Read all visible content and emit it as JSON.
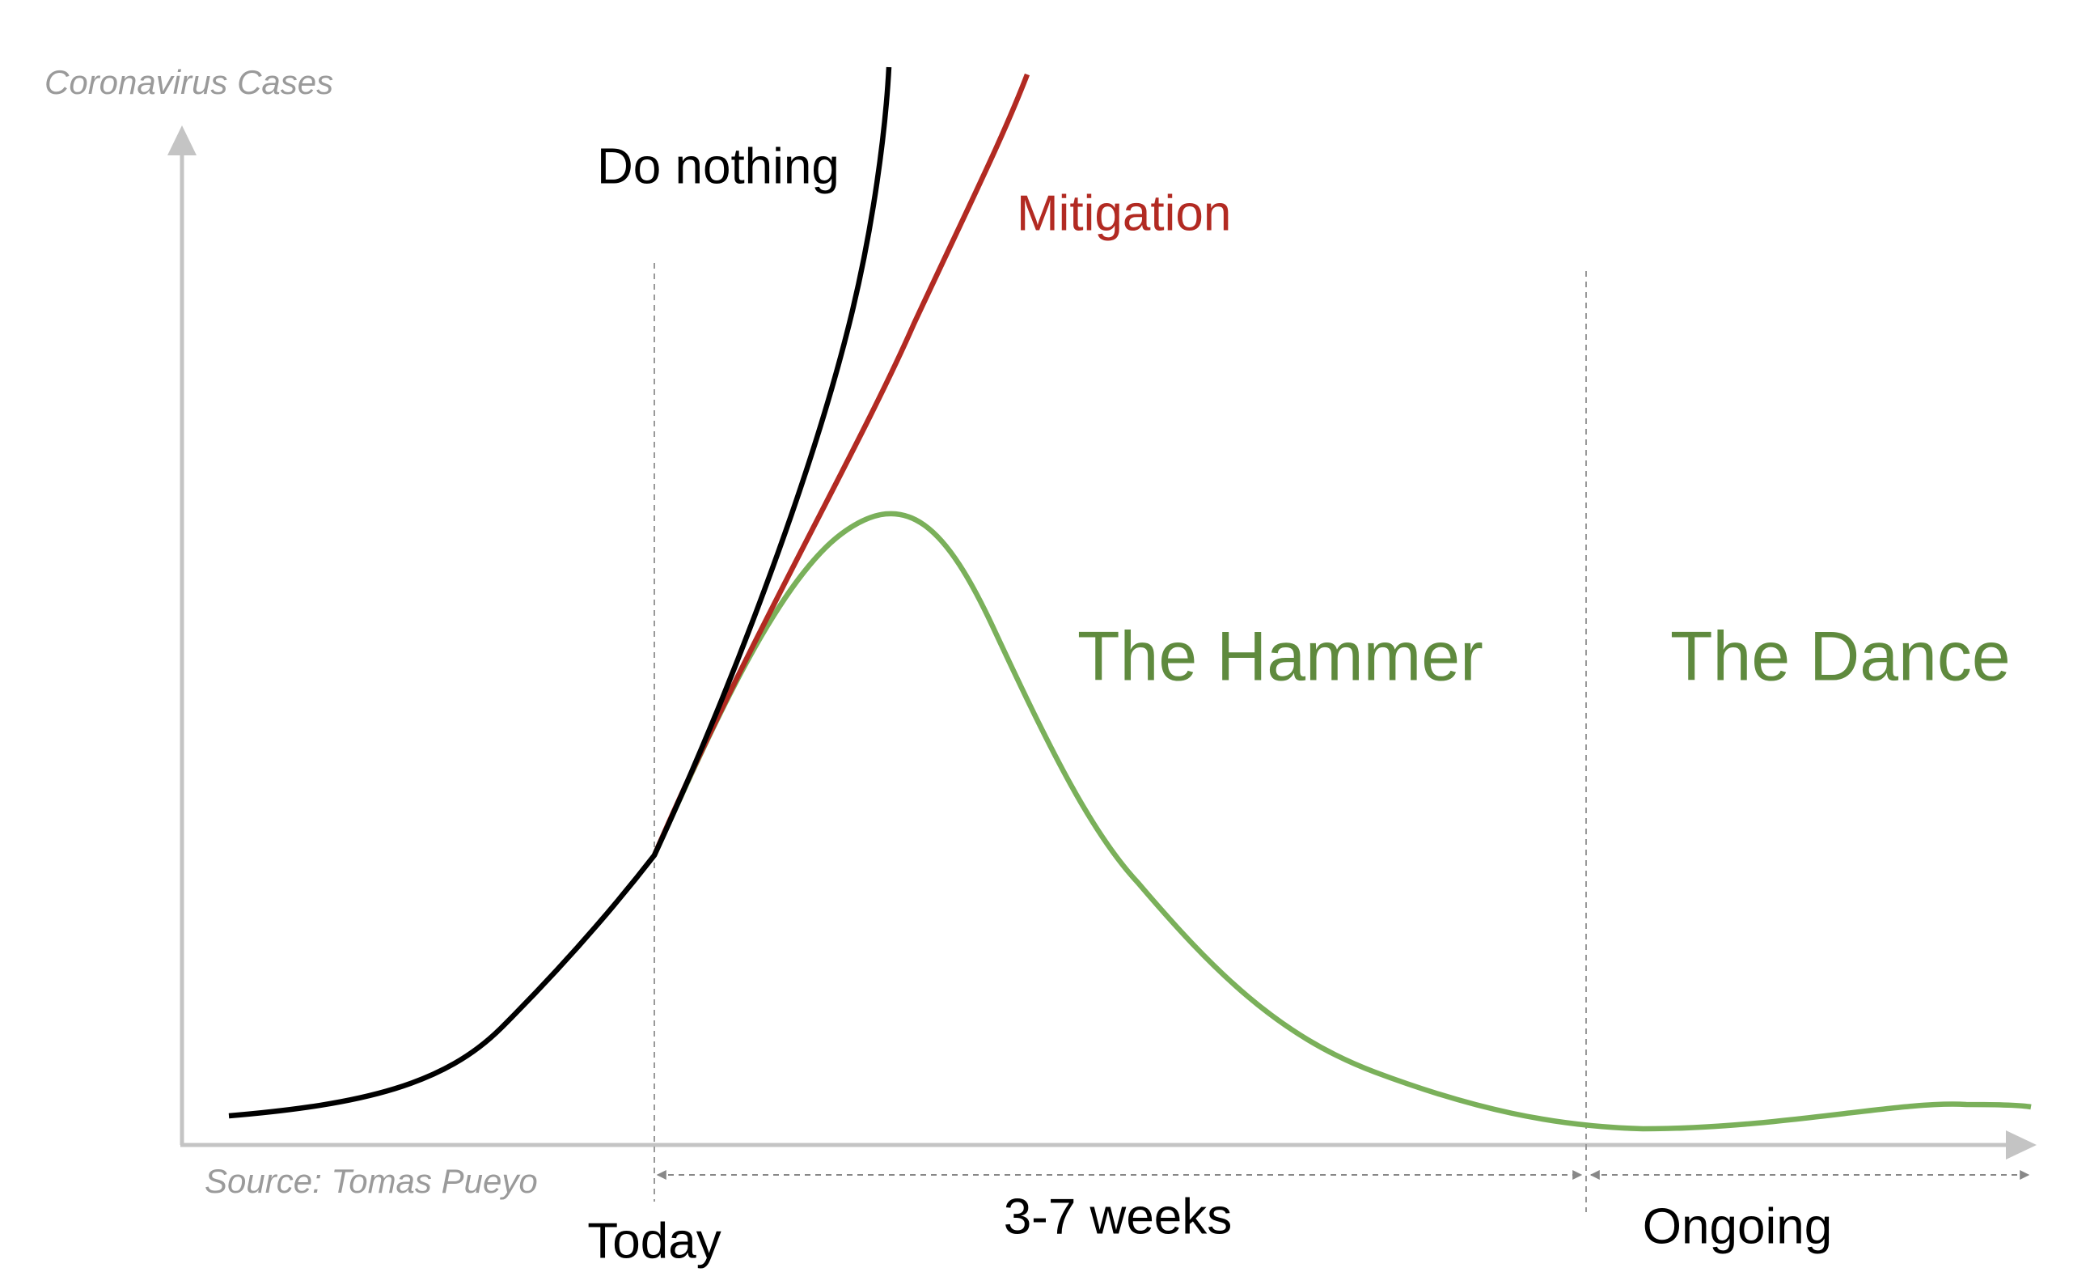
{
  "axis_label": "Coronavirus Cases",
  "source": "Source: Tomas Pueyo",
  "curves": [
    {
      "label": "Do nothing"
    },
    {
      "label": "Mitigation"
    }
  ],
  "phases": [
    {
      "label": "The Hammer"
    },
    {
      "label": "The Dance"
    }
  ],
  "timeline": {
    "start": "Today",
    "hammer_duration": "3-7 weeks",
    "dance_duration": "Ongoing"
  }
}
